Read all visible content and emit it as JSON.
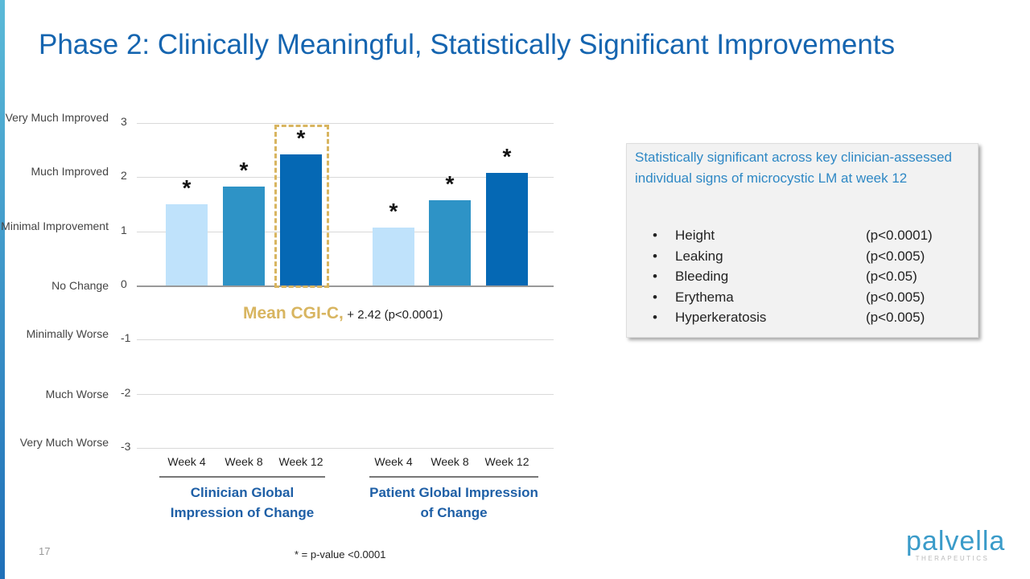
{
  "title": "Phase 2: Clinically Meaningful, Statistically Significant Improvements",
  "chart_data": {
    "type": "bar",
    "ylim": [
      -3,
      3
    ],
    "yticks": [
      {
        "v": 3,
        "t": "3",
        "label": "Very Much Improved"
      },
      {
        "v": 2,
        "t": "2",
        "label": "Much Improved"
      },
      {
        "v": 1,
        "t": "1",
        "label": "Minimal Improvement"
      },
      {
        "v": 0,
        "t": "0",
        "label": "No Change"
      },
      {
        "v": -1,
        "t": "-1",
        "label": "Minimally Worse"
      },
      {
        "v": -2,
        "t": "-2",
        "label": "Much Worse"
      },
      {
        "v": -3,
        "t": "-3",
        "label": "Very Much Worse"
      }
    ],
    "groups": [
      {
        "name": "Clinician Global Impression of Change",
        "categories": [
          "Week 4",
          "Week 8",
          "Week 12"
        ],
        "values": [
          1.5,
          1.83,
          2.42
        ]
      },
      {
        "name": "Patient Global Impression of Change",
        "categories": [
          "Week 4",
          "Week 8",
          "Week 12"
        ],
        "values": [
          1.07,
          1.58,
          2.08
        ]
      }
    ],
    "colors": [
      "#bfe2fb",
      "#2e93c6",
      "#0568b4"
    ],
    "significance_marker": "*",
    "highlight": {
      "group": 0,
      "bar": 2,
      "color": "#d8b560"
    },
    "annotation": {
      "label": "Mean CGI-C,",
      "value": "+ 2.42 (p<0.0001)"
    },
    "footnote": "* = p-value <0.0001",
    "grid": true
  },
  "sidebox": {
    "heading": "Statistically significant across key clinician-assessed individual signs of microcystic LM at week 12",
    "items": [
      {
        "sign": "Height",
        "p": "(p<0.0001)"
      },
      {
        "sign": "Leaking",
        "p": "(p<0.005)"
      },
      {
        "sign": "Bleeding",
        "p": "(p<0.05)"
      },
      {
        "sign": "Erythema",
        "p": "(p<0.005)"
      },
      {
        "sign": "Hyperkeratosis",
        "p": "(p<0.005)"
      }
    ]
  },
  "page_number": "17",
  "logo": {
    "name": "palvella",
    "tagline": "THERAPEUTICS"
  }
}
